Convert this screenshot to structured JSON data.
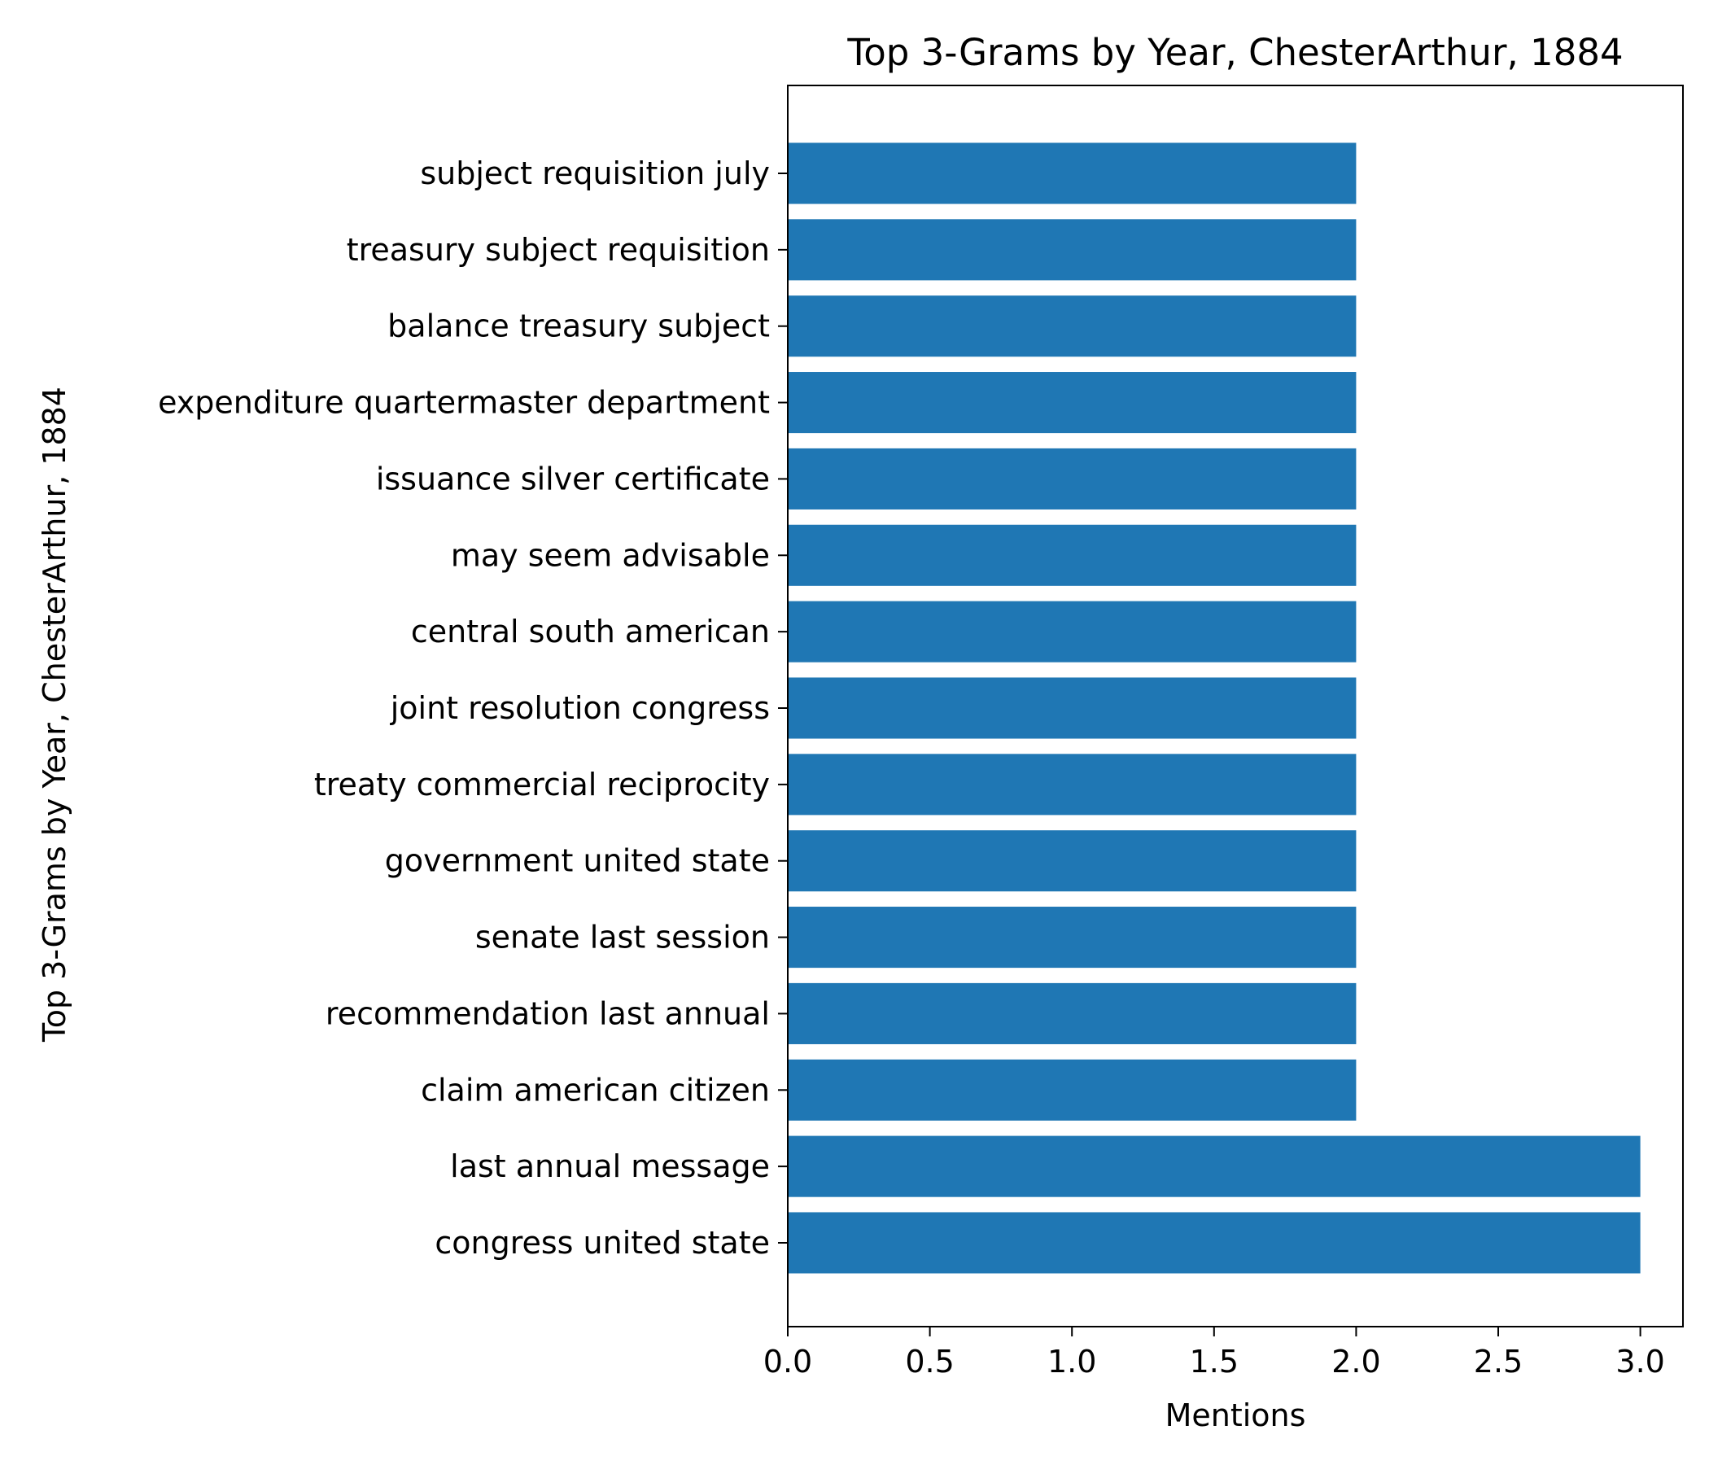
{
  "chart_data": {
    "type": "bar",
    "orientation": "horizontal",
    "title": "Top 3-Grams by Year, ChesterArthur, 1884",
    "xlabel": "Mentions",
    "ylabel": "Top 3-Grams by Year, ChesterArthur, 1884",
    "xlim": [
      0,
      3.15
    ],
    "x_ticks": [
      "0.0",
      "0.5",
      "1.0",
      "1.5",
      "2.0",
      "2.5",
      "3.0"
    ],
    "x_tick_values": [
      0,
      0.5,
      1.0,
      1.5,
      2.0,
      2.5,
      3.0
    ],
    "grid": false,
    "bar_color": "#1f77b4",
    "categories": [
      "congress united state",
      "last annual message",
      "claim american citizen",
      "recommendation last annual",
      "senate last session",
      "government united state",
      "treaty commercial reciprocity",
      "joint resolution congress",
      "central south american",
      "may seem advisable",
      "issuance silver certificate",
      "expenditure quartermaster department",
      "balance treasury subject",
      "treasury subject requisition",
      "subject requisition july"
    ],
    "values": [
      3,
      3,
      2,
      2,
      2,
      2,
      2,
      2,
      2,
      2,
      2,
      2,
      2,
      2,
      2
    ]
  }
}
